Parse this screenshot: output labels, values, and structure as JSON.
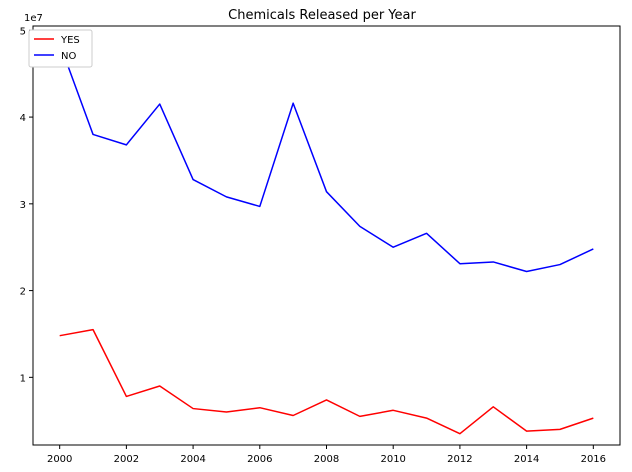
{
  "chart_data": {
    "type": "line",
    "title": "Chemicals Released per Year",
    "xlabel": "",
    "ylabel": "",
    "y_offset_label": "1e7",
    "x": [
      2000,
      2001,
      2002,
      2003,
      2004,
      2005,
      2006,
      2007,
      2008,
      2009,
      2010,
      2011,
      2012,
      2013,
      2014,
      2015,
      2016
    ],
    "xticks": [
      "2000",
      "2002",
      "2004",
      "2006",
      "2008",
      "2010",
      "2012",
      "2014",
      "2016"
    ],
    "yticks": [
      "1",
      "2",
      "3",
      "4",
      "5"
    ],
    "xlim": [
      1999.2,
      2016.8
    ],
    "ylim": [
      2.2,
      50.5
    ],
    "y_tick_values": [
      10,
      20,
      30,
      40,
      50
    ],
    "series": [
      {
        "name": "YES",
        "color": "#ff0000",
        "values": [
          14.8,
          15.5,
          7.8,
          9.0,
          6.4,
          6.0,
          6.5,
          5.6,
          7.4,
          5.5,
          6.2,
          5.3,
          3.5,
          6.6,
          3.8,
          4.0,
          5.3
        ]
      },
      {
        "name": "NO",
        "color": "#0000ff",
        "values": [
          48.5,
          38.0,
          36.8,
          41.5,
          32.8,
          30.8,
          29.7,
          41.6,
          31.4,
          27.4,
          25.0,
          26.6,
          23.1,
          23.3,
          22.2,
          23.0,
          24.8
        ]
      }
    ],
    "legend_position": "top-left",
    "grid": false
  }
}
